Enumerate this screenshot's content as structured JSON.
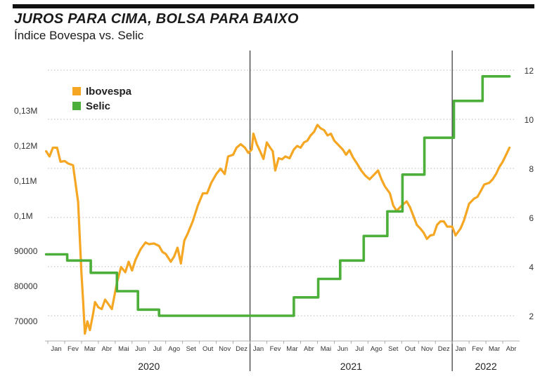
{
  "title": "JUROS PARA CIMA, BOLSA PARA BAIXO",
  "subtitle": "Índice Bovespa vs. Selic",
  "colors": {
    "ibovespa": "#F5A623",
    "selic": "#4CAF3A",
    "grid": "#bbbbbb",
    "divider": "#333333"
  },
  "chart_data": {
    "type": "line",
    "title": "JUROS PARA CIMA, BOLSA PARA BAIXO",
    "subtitle": "Índice Bovespa vs. Selic",
    "legend_position": "top-left",
    "grid": "horizontal dotted",
    "x_range": [
      0,
      28
    ],
    "left_axis": {
      "min": 60000,
      "max": 130000,
      "ticks": [
        [
          70000,
          "70000"
        ],
        [
          80000,
          "80000"
        ],
        [
          90000,
          "90000"
        ],
        [
          100000,
          "0,1M"
        ],
        [
          110000,
          "0,11M"
        ],
        [
          120000,
          "0,12M"
        ],
        [
          130000,
          "0,13M"
        ]
      ]
    },
    "right_axis": {
      "min": 0,
      "max": 12,
      "ticks": [
        [
          2,
          "2"
        ],
        [
          4,
          "4"
        ],
        [
          6,
          "6"
        ],
        [
          8,
          "8"
        ],
        [
          10,
          "10"
        ],
        [
          12,
          "12"
        ]
      ]
    },
    "months": [
      "Jan",
      "Fev",
      "Mar",
      "Abr",
      "Mai",
      "Jun",
      "Jul",
      "Ago",
      "Set",
      "Out",
      "Nov",
      "Dez",
      "Jan",
      "Fev",
      "Mar",
      "Abr",
      "Mai",
      "Jun",
      "Jul",
      "Ago",
      "Set",
      "Out",
      "Nov",
      "Dez",
      "Jan",
      "Fev",
      "Mar",
      "Abr"
    ],
    "years": [
      {
        "label": "2020",
        "start": 0,
        "end": 12
      },
      {
        "label": "2021",
        "start": 12,
        "end": 24
      },
      {
        "label": "2022",
        "start": 24,
        "end": 28
      }
    ],
    "dividers": [
      12,
      24
    ],
    "series": [
      {
        "name": "Ibovespa",
        "axis": "left",
        "color": "#F5A623",
        "points": [
          [
            -0.1,
            118500
          ],
          [
            0.1,
            117000
          ],
          [
            0.3,
            119500
          ],
          [
            0.55,
            119500
          ],
          [
            0.75,
            115500
          ],
          [
            1.0,
            115700
          ],
          [
            1.2,
            115000
          ],
          [
            1.5,
            114500
          ],
          [
            1.8,
            104000
          ],
          [
            2.0,
            83500
          ],
          [
            2.1,
            75500
          ],
          [
            2.2,
            66500
          ],
          [
            2.35,
            70000
          ],
          [
            2.5,
            67500
          ],
          [
            2.7,
            72500
          ],
          [
            2.8,
            75500
          ],
          [
            3.0,
            74000
          ],
          [
            3.2,
            73500
          ],
          [
            3.4,
            76200
          ],
          [
            3.55,
            75200
          ],
          [
            3.8,
            73500
          ],
          [
            4.1,
            81000
          ],
          [
            4.35,
            85500
          ],
          [
            4.6,
            84000
          ],
          [
            4.8,
            87000
          ],
          [
            5.0,
            84500
          ],
          [
            5.2,
            87500
          ],
          [
            5.5,
            90500
          ],
          [
            5.8,
            92500
          ],
          [
            6.0,
            92000
          ],
          [
            6.3,
            92200
          ],
          [
            6.6,
            91500
          ],
          [
            6.8,
            89800
          ],
          [
            7.0,
            89200
          ],
          [
            7.3,
            87000
          ],
          [
            7.5,
            88500
          ],
          [
            7.7,
            91000
          ],
          [
            7.9,
            86500
          ],
          [
            8.1,
            93000
          ],
          [
            8.3,
            95000
          ],
          [
            8.6,
            98500
          ],
          [
            8.9,
            103000
          ],
          [
            9.2,
            106500
          ],
          [
            9.45,
            106500
          ],
          [
            9.7,
            109500
          ],
          [
            10.0,
            112000
          ],
          [
            10.25,
            113500
          ],
          [
            10.5,
            112000
          ],
          [
            10.7,
            117000
          ],
          [
            11.0,
            117500
          ],
          [
            11.2,
            119500
          ],
          [
            11.45,
            120500
          ],
          [
            11.7,
            119500
          ],
          [
            11.9,
            118000
          ],
          [
            12.1,
            119000
          ],
          [
            12.2,
            123500
          ],
          [
            12.4,
            120500
          ],
          [
            12.6,
            118500
          ],
          [
            12.8,
            116300
          ],
          [
            13.0,
            121000
          ],
          [
            13.2,
            119500
          ],
          [
            13.35,
            118500
          ],
          [
            13.5,
            113000
          ],
          [
            13.7,
            116500
          ],
          [
            13.9,
            116200
          ],
          [
            14.1,
            117000
          ],
          [
            14.35,
            116500
          ],
          [
            14.6,
            119000
          ],
          [
            14.8,
            120000
          ],
          [
            15.0,
            119500
          ],
          [
            15.2,
            121000
          ],
          [
            15.4,
            121500
          ],
          [
            15.6,
            123000
          ],
          [
            15.8,
            124000
          ],
          [
            16.0,
            126000
          ],
          [
            16.2,
            125000
          ],
          [
            16.4,
            124500
          ],
          [
            16.6,
            123000
          ],
          [
            16.8,
            123500
          ],
          [
            17.0,
            121500
          ],
          [
            17.2,
            120500
          ],
          [
            17.5,
            119000
          ],
          [
            17.7,
            117500
          ],
          [
            17.9,
            118800
          ],
          [
            18.1,
            116800
          ],
          [
            18.35,
            115000
          ],
          [
            18.6,
            113000
          ],
          [
            18.85,
            111500
          ],
          [
            19.1,
            110500
          ],
          [
            19.4,
            112000
          ],
          [
            19.6,
            113000
          ],
          [
            19.8,
            110500
          ],
          [
            20.0,
            108500
          ],
          [
            20.3,
            106500
          ],
          [
            20.5,
            103000
          ],
          [
            20.7,
            101500
          ],
          [
            21.0,
            103000
          ],
          [
            21.3,
            104200
          ],
          [
            21.5,
            102500
          ],
          [
            21.7,
            100000
          ],
          [
            21.9,
            97500
          ],
          [
            22.1,
            96500
          ],
          [
            22.3,
            95300
          ],
          [
            22.5,
            93500
          ],
          [
            22.7,
            94500
          ],
          [
            22.9,
            94700
          ],
          [
            23.1,
            97500
          ],
          [
            23.3,
            98500
          ],
          [
            23.5,
            98500
          ],
          [
            23.7,
            97000
          ],
          [
            24.0,
            97000
          ],
          [
            24.2,
            94500
          ],
          [
            24.5,
            96500
          ],
          [
            24.7,
            98800
          ],
          [
            25.0,
            103500
          ],
          [
            25.3,
            105000
          ],
          [
            25.5,
            105500
          ],
          [
            25.7,
            107200
          ],
          [
            25.9,
            109000
          ],
          [
            26.2,
            109500
          ],
          [
            26.4,
            110500
          ],
          [
            26.6,
            112000
          ],
          [
            26.8,
            114000
          ],
          [
            27.0,
            115500
          ],
          [
            27.2,
            117500
          ],
          [
            27.4,
            119500
          ]
        ]
      },
      {
        "name": "Selic",
        "axis": "right",
        "color": "#4CAF3A",
        "steps": [
          [
            -0.1,
            4.5
          ],
          [
            1.15,
            4.25
          ],
          [
            2.55,
            3.75
          ],
          [
            4.1,
            3.0
          ],
          [
            5.35,
            2.25
          ],
          [
            6.6,
            2.0
          ],
          [
            14.6,
            2.75
          ],
          [
            16.05,
            3.5
          ],
          [
            17.35,
            4.25
          ],
          [
            18.75,
            5.25
          ],
          [
            20.15,
            6.25
          ],
          [
            21.05,
            7.75
          ],
          [
            22.35,
            9.25
          ],
          [
            24.1,
            10.75
          ],
          [
            25.8,
            11.75
          ],
          [
            27.4,
            11.75
          ]
        ]
      }
    ]
  }
}
